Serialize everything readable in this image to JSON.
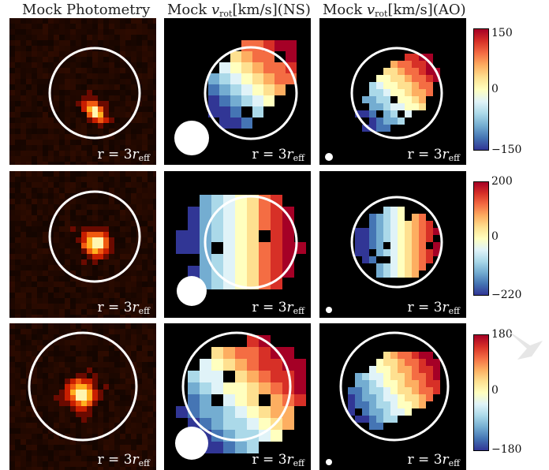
{
  "columns": [
    {
      "title": "Mock Photometry"
    },
    {
      "title_pre": "Mock ",
      "title_var": "v",
      "title_sub": "rot",
      "title_post": "[km/s](NS)"
    },
    {
      "title_pre": "Mock ",
      "title_var": "v",
      "title_sub": "rot",
      "title_post": "[km/s](AO)"
    }
  ],
  "radius_label": {
    "pre": "r = 3",
    "var": "r",
    "sub": "eff"
  },
  "colorbars": [
    {
      "max_label": "150",
      "mid_label": "0",
      "min_label": "−150"
    },
    {
      "max_label": "200",
      "mid_label": "0",
      "min_label": "−220"
    },
    {
      "max_label": "180",
      "mid_label": "0",
      "min_label": "−180"
    }
  ],
  "colors": {
    "panel_bg": "#000000",
    "circle": "#ffffff",
    "cmap": [
      "#a50026",
      "#d73027",
      "#f46d43",
      "#fdae61",
      "#fee090",
      "#ffffbf",
      "#e0f3f8",
      "#abd9e9",
      "#74add1",
      "#4575b4",
      "#313695"
    ]
  }
}
